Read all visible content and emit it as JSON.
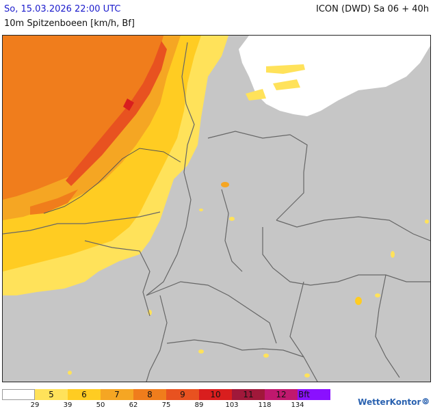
{
  "header": {
    "datetime": "So, 15.03.2026 22:00 UTC",
    "parameter": "10m Spitzenboeen [km/h, Bf]",
    "model": "ICON (DWD) Sa 06 + 40h"
  },
  "legend": {
    "bins": [
      {
        "label": "",
        "color": "#ffffff"
      },
      {
        "label": "5",
        "color": "#ffe25a"
      },
      {
        "label": "6",
        "color": "#ffcc22"
      },
      {
        "label": "7",
        "color": "#f5a623"
      },
      {
        "label": "8",
        "color": "#f07d1c"
      },
      {
        "label": "9",
        "color": "#e85220"
      },
      {
        "label": "10",
        "color": "#d91e1e"
      },
      {
        "label": "11",
        "color": "#a0183a"
      },
      {
        "label": "12",
        "color": "#c0186e"
      },
      {
        "label": "Bft",
        "color": "#8a10ff"
      }
    ],
    "ticks": [
      "29",
      "39",
      "50",
      "62",
      "75",
      "89",
      "103",
      "118",
      "134"
    ]
  },
  "branding": {
    "name": "WetterKontor"
  },
  "colors": {
    "land": "#c6c6c6",
    "sea_mask": "#ffffff",
    "border": "#666666"
  }
}
